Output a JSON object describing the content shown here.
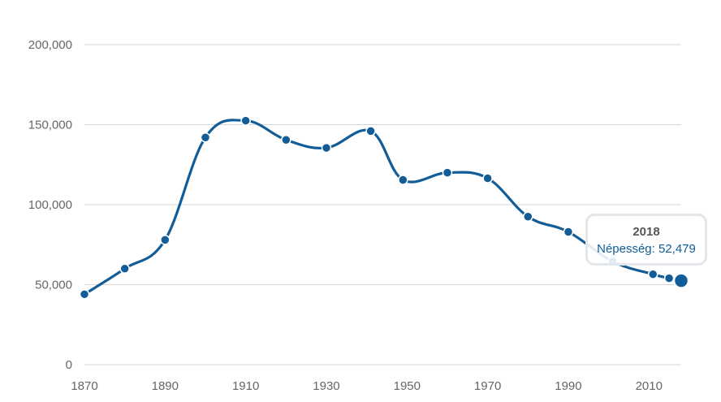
{
  "chart_data": {
    "type": "line",
    "title": "",
    "xlabel": "",
    "ylabel": "",
    "x_ticks": [
      "1870",
      "1890",
      "1910",
      "1930",
      "1950",
      "1970",
      "1990",
      "2010"
    ],
    "y_ticks": [
      "0",
      "50,000",
      "100,000",
      "150,000",
      "200,000"
    ],
    "xlim": [
      1870,
      2018
    ],
    "ylim": [
      0,
      200000
    ],
    "grid": true,
    "legend": "none",
    "series": [
      {
        "name": "Népesség",
        "color": "#125d98",
        "points": [
          {
            "x": 1870,
            "y": 44000
          },
          {
            "x": 1880,
            "y": 60000
          },
          {
            "x": 1890,
            "y": 78000
          },
          {
            "x": 1900,
            "y": 142000
          },
          {
            "x": 1910,
            "y": 152500
          },
          {
            "x": 1920,
            "y": 140500
          },
          {
            "x": 1930,
            "y": 135500
          },
          {
            "x": 1941,
            "y": 146000
          },
          {
            "x": 1949,
            "y": 115500
          },
          {
            "x": 1960,
            "y": 120000
          },
          {
            "x": 1970,
            "y": 116500
          },
          {
            "x": 1980,
            "y": 92500
          },
          {
            "x": 1990,
            "y": 83000
          },
          {
            "x": 2001,
            "y": 64500
          },
          {
            "x": 2011,
            "y": 56500
          },
          {
            "x": 2015,
            "y": 54000
          },
          {
            "x": 2018,
            "y": 52479
          }
        ]
      }
    ],
    "tooltip": {
      "title": "2018",
      "label": "Népesség: 52,479"
    }
  }
}
